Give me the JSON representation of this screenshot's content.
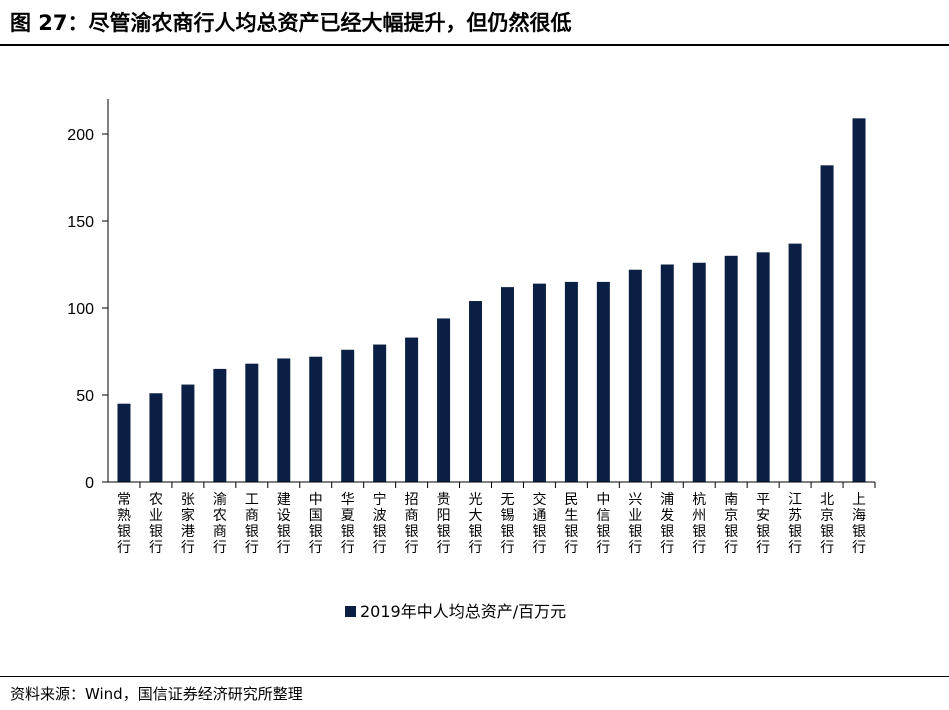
{
  "header": {
    "title": "图 27：尽管渝农商行人均总资产已经大幅提升，但仍然很低"
  },
  "footer": {
    "source": "资料来源：Wind，国信证券经济研究所整理"
  },
  "colors": {
    "bar": "#0b1f45",
    "axis": "#000000"
  },
  "chart_data": {
    "type": "bar",
    "title": "",
    "xlabel": "",
    "ylabel": "",
    "ylim": [
      0,
      200
    ],
    "yticks": [
      "0",
      "50",
      "100",
      "150",
      "200"
    ],
    "legend": "bottom",
    "grid": false,
    "categories": [
      "常熟银行",
      "农业银行",
      "张家港行",
      "渝农商行",
      "工商银行",
      "建设银行",
      "中国银行",
      "华夏银行",
      "宁波银行",
      "招商银行",
      "贵阳银行",
      "光大银行",
      "无锡银行",
      "交通银行",
      "民生银行",
      "中信银行",
      "兴业银行",
      "浦发银行",
      "杭州银行",
      "南京银行",
      "平安银行",
      "江苏银行",
      "北京银行",
      "上海银行"
    ],
    "series": [
      {
        "name": "2019年中人均总资产/百万元",
        "values": [
          45,
          51,
          56,
          65,
          68,
          71,
          72,
          76,
          79,
          83,
          94,
          104,
          112,
          114,
          115,
          115,
          122,
          125,
          126,
          130,
          132,
          137,
          182,
          209
        ]
      }
    ]
  }
}
